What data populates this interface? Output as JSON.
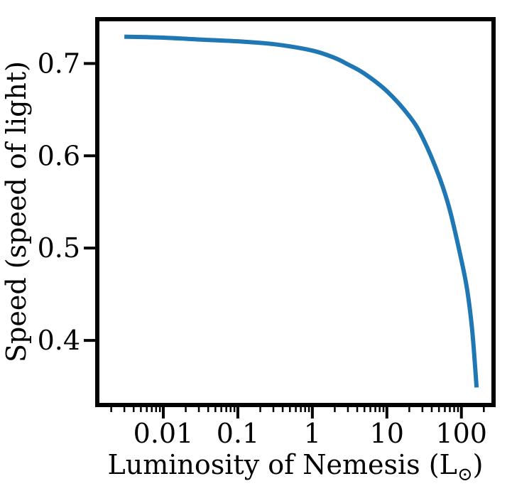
{
  "chart_data": {
    "type": "line",
    "title": "",
    "xlabel": "Luminosity of Nemesis (L",
    "xlabel_subscript": "⊙",
    "xlabel_close": ")",
    "ylabel": "Speed (speed of light)",
    "xscale": "log",
    "xlim": [
      0.0013,
      270
    ],
    "ylim": [
      0.33,
      0.748
    ],
    "xticks": [
      0.01,
      0.1,
      1,
      10,
      100
    ],
    "xtick_labels": [
      "0.01",
      "0.1",
      "1",
      "10",
      "100"
    ],
    "yticks": [
      0.4,
      0.5,
      0.6,
      0.7
    ],
    "ytick_labels": [
      "0.4",
      "0.5",
      "0.6",
      "0.7"
    ],
    "grid": false,
    "series": [
      {
        "color": "#1f77b4",
        "x": [
          0.003,
          0.01,
          0.03,
          0.1,
          0.3,
          1,
          2,
          3,
          5,
          10,
          20,
          30,
          50,
          70,
          100,
          120,
          140,
          160
        ],
        "y": [
          0.729,
          0.728,
          0.726,
          0.724,
          0.721,
          0.714,
          0.706,
          0.699,
          0.689,
          0.67,
          0.643,
          0.62,
          0.578,
          0.541,
          0.487,
          0.454,
          0.41,
          0.349
        ]
      }
    ]
  }
}
